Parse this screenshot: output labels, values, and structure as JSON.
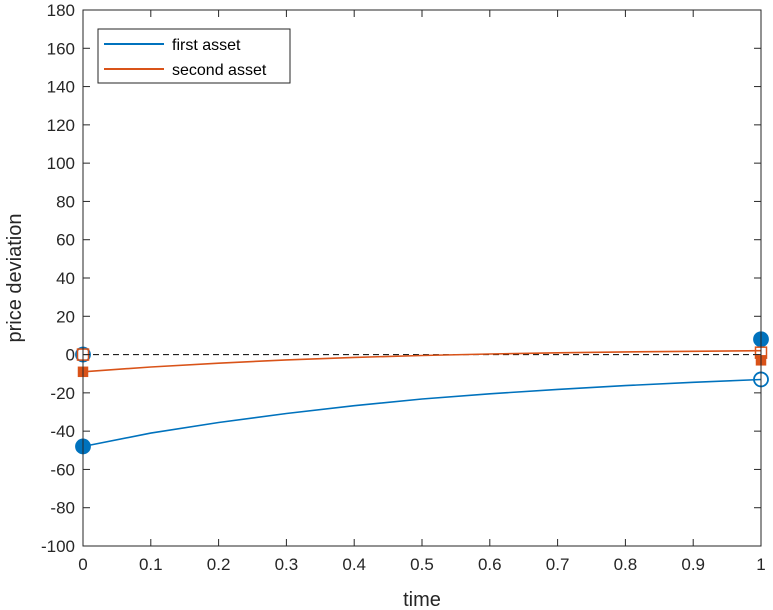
{
  "chart_data": {
    "type": "line",
    "xlabel": "time",
    "ylabel": "price deviation",
    "xlim": [
      0,
      1
    ],
    "ylim": [
      -100,
      180
    ],
    "xticks": [
      0,
      0.1,
      0.2,
      0.3,
      0.4,
      0.5,
      0.6,
      0.7,
      0.8,
      0.9,
      1
    ],
    "xtick_labels": [
      "0",
      "0.1",
      "0.2",
      "0.3",
      "0.4",
      "0.5",
      "0.6",
      "0.7",
      "0.8",
      "0.9",
      "1"
    ],
    "yticks": [
      -100,
      -80,
      -60,
      -40,
      -20,
      0,
      20,
      40,
      60,
      80,
      100,
      120,
      140,
      160,
      180
    ],
    "ytick_labels": [
      "-100",
      "-80",
      "-60",
      "-40",
      "-20",
      "0",
      "20",
      "40",
      "60",
      "80",
      "100",
      "120",
      "140",
      "160",
      "180"
    ],
    "grid": false,
    "legend_position": "top-left",
    "reference_line": {
      "y": 0,
      "style": "dashed",
      "color": "#000000"
    },
    "series": [
      {
        "name": "first asset",
        "color": "#0072BD",
        "x": [
          0,
          0.1,
          0.2,
          0.3,
          0.4,
          0.5,
          0.6,
          0.7,
          0.8,
          0.9,
          1
        ],
        "values": [
          -48,
          -41,
          -35.5,
          -30.8,
          -26.7,
          -23.2,
          -20.5,
          -18.2,
          -16.2,
          -14.5,
          -13
        ],
        "markers": [
          {
            "x": 0,
            "y": -48,
            "shape": "circle",
            "filled": true
          },
          {
            "x": 0,
            "y": 0,
            "shape": "circle",
            "filled": false
          },
          {
            "x": 1,
            "y": 8,
            "shape": "circle",
            "filled": true
          },
          {
            "x": 1,
            "y": -13,
            "shape": "circle",
            "filled": false
          }
        ]
      },
      {
        "name": "second asset",
        "color": "#D95319",
        "x": [
          0,
          0.1,
          0.2,
          0.3,
          0.4,
          0.5,
          0.6,
          0.7,
          0.8,
          0.9,
          1
        ],
        "values": [
          -9,
          -6.5,
          -4.5,
          -2.8,
          -1.5,
          -0.5,
          0.3,
          0.9,
          1.4,
          1.7,
          2
        ],
        "markers": [
          {
            "x": 0,
            "y": -9,
            "shape": "square",
            "filled": true
          },
          {
            "x": 0,
            "y": 0,
            "shape": "square",
            "filled": false
          },
          {
            "x": 1,
            "y": -3,
            "shape": "square",
            "filled": true
          },
          {
            "x": 1,
            "y": 1,
            "shape": "square",
            "filled": false
          }
        ]
      }
    ]
  }
}
